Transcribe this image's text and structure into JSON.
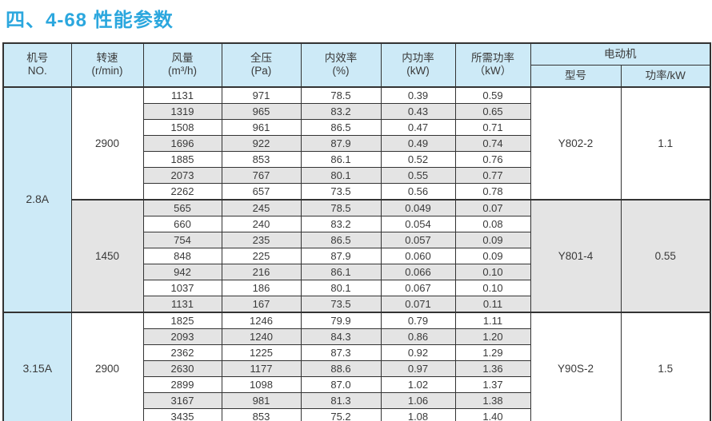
{
  "page": {
    "title": "四、4-68 性能参数"
  },
  "table": {
    "headers": {
      "cols": [
        {
          "line1": "机号",
          "line2": "NO."
        },
        {
          "line1": "转速",
          "line2": "(r/min)"
        },
        {
          "line1": "风量",
          "line2": "(m³/h)"
        },
        {
          "line1": "全压",
          "line2": "(Pa)"
        },
        {
          "line1": "内效率",
          "line2": "(%)"
        },
        {
          "line1": "内功率",
          "line2": "(kW)"
        },
        {
          "line1": "所需功率",
          "line2": "（kW）"
        }
      ],
      "motor_group": "电动机",
      "motor_model": "型号",
      "motor_power": "功率/kW"
    },
    "blocks": [
      {
        "model": "2.8A",
        "model_rowspan": 14,
        "speed": "2900",
        "motor_model": "Y802-2",
        "motor_power": "1.1",
        "shade": "white",
        "rows": [
          [
            "1131",
            "971",
            "78.5",
            "0.39",
            "0.59"
          ],
          [
            "1319",
            "965",
            "83.2",
            "0.43",
            "0.65"
          ],
          [
            "1508",
            "961",
            "86.5",
            "0.47",
            "0.71"
          ],
          [
            "1696",
            "922",
            "87.9",
            "0.49",
            "0.74"
          ],
          [
            "1885",
            "853",
            "86.1",
            "0.52",
            "0.76"
          ],
          [
            "2073",
            "767",
            "80.1",
            "0.55",
            "0.77"
          ],
          [
            "2262",
            "657",
            "73.5",
            "0.56",
            "0.78"
          ]
        ]
      },
      {
        "model": null,
        "model_rowspan": 0,
        "speed": "1450",
        "motor_model": "Y801-4",
        "motor_power": "0.55",
        "shade": "gray",
        "rows": [
          [
            "565",
            "245",
            "78.5",
            "0.049",
            "0.07"
          ],
          [
            "660",
            "240",
            "83.2",
            "0.054",
            "0.08"
          ],
          [
            "754",
            "235",
            "86.5",
            "0.057",
            "0.09"
          ],
          [
            "848",
            "225",
            "87.9",
            "0.060",
            "0.09"
          ],
          [
            "942",
            "216",
            "86.1",
            "0.066",
            "0.10"
          ],
          [
            "1037",
            "186",
            "80.1",
            "0.067",
            "0.10"
          ],
          [
            "1131",
            "167",
            "73.5",
            "0.071",
            "0.11"
          ]
        ]
      },
      {
        "model": "3.15A",
        "model_rowspan": 7,
        "speed": "2900",
        "motor_model": "Y90S-2",
        "motor_power": "1.5",
        "shade": "white",
        "rows": [
          [
            "1825",
            "1246",
            "79.9",
            "0.79",
            "1.11"
          ],
          [
            "2093",
            "1240",
            "84.3",
            "0.86",
            "1.20"
          ],
          [
            "2362",
            "1225",
            "87.3",
            "0.92",
            "1.29"
          ],
          [
            "2630",
            "1177",
            "88.6",
            "0.97",
            "1.36"
          ],
          [
            "2899",
            "1098",
            "87.0",
            "1.02",
            "1.37"
          ],
          [
            "3167",
            "981",
            "81.3",
            "1.06",
            "1.38"
          ],
          [
            "3435",
            "853",
            "75.2",
            "1.08",
            "1.40"
          ]
        ]
      }
    ],
    "colors": {
      "title_blue": "#2ba7de",
      "header_blue": "#cdeaf7",
      "stripe_gray": "#e4e4e4",
      "border": "#333333"
    }
  }
}
